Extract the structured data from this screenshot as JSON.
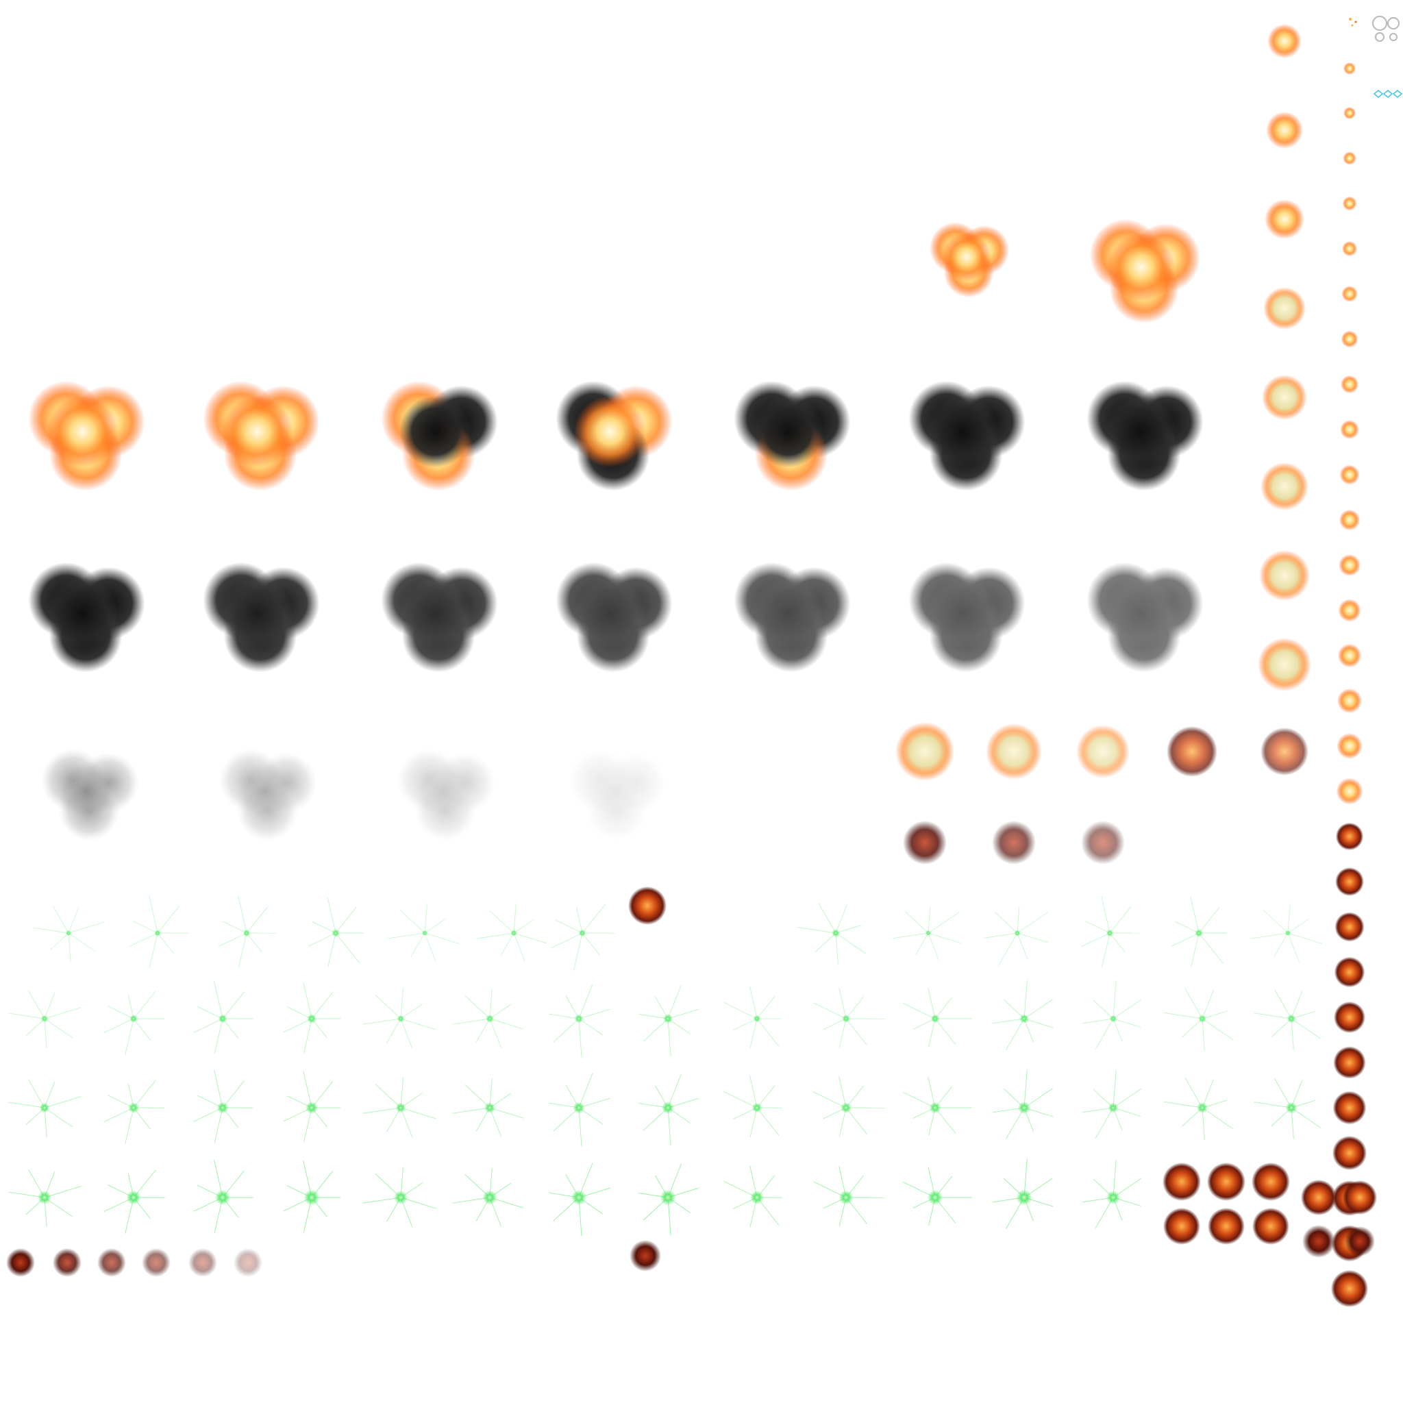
{
  "sheet": {
    "kind": "explosion-sprite-atlas",
    "background": "#ffffff",
    "palette": {
      "fire_core": "#fff4c8",
      "fire_mid": "#ffae42",
      "fire_glow": "#ff6a1e",
      "smoke_dark": "#1b1b1b",
      "smoke_light": "#9a9a9a",
      "ember_red": "#8a1e12",
      "spark_green": "#46e65a",
      "ui_cyan": "#3fc6e8",
      "ui_grey": "#b8b8b8"
    }
  },
  "animations": [
    {
      "name": "large-fireball-ignition",
      "frames": 2,
      "style": "fire"
    },
    {
      "name": "large-fireball-smoke-transition",
      "frames": 19,
      "style": "smoke"
    },
    {
      "name": "medium-flash-fireball",
      "frames": 16,
      "style": "fire"
    },
    {
      "name": "small-ember-column",
      "frames": 27,
      "style": "ember"
    },
    {
      "name": "green-spark-burst",
      "frames": 55,
      "style": "spark"
    },
    {
      "name": "small-ember-cluster",
      "frames": 10,
      "style": "ember"
    },
    {
      "name": "dark-ember-puff",
      "frames": 7,
      "style": "ember"
    }
  ]
}
